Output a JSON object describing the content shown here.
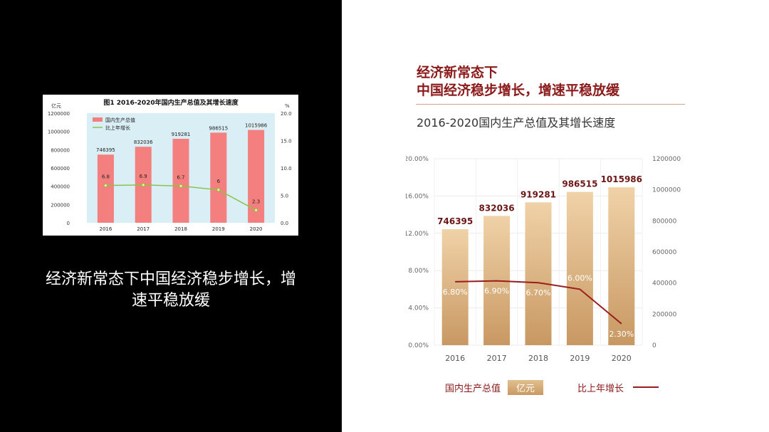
{
  "left_caption": "经济新常态下中国经济稳步增长，增速平稳放缓",
  "headline": {
    "line1": "经济新常态下",
    "line2": "中国经济稳步增长，增速平稳放缓"
  },
  "subtitle": "2016-2020国内生产总值及其增长速度",
  "legend": {
    "gdp": "国内生产总值",
    "unit": "亿元",
    "growth": "比上年增长"
  },
  "colors": {
    "bar_top": "#f0d2a8",
    "bar_bottom": "#c89862",
    "line": "#9a1c1c",
    "label_dark": "#6b1515"
  },
  "original_chart": {
    "title": "图1   2016-2020年国内生产总值及其增长速度",
    "left_unit": "亿元",
    "right_unit": "%",
    "legend_gdp": "国内生产总值",
    "legend_growth": "比上年增长",
    "y_left_ticks": [
      "1200000",
      "1000000",
      "800000",
      "600000",
      "400000",
      "200000",
      "0"
    ],
    "y_right_ticks": [
      "20.0",
      "15.0",
      "10.0",
      "5.0",
      "0.0"
    ]
  },
  "chart_data": {
    "type": "bar",
    "categories": [
      "2016",
      "2017",
      "2018",
      "2019",
      "2020"
    ],
    "series": [
      {
        "name": "国内生产总值",
        "type": "bar",
        "values": [
          746395,
          832036,
          919281,
          986515,
          1015986
        ],
        "labels": [
          "746395",
          "832036",
          "919281",
          "986515",
          "1015986"
        ]
      },
      {
        "name": "比上年增长",
        "type": "line",
        "values": [
          6.8,
          6.9,
          6.7,
          6.0,
          2.3
        ],
        "labels": [
          "6.80%",
          "6.90%",
          "6.70%",
          "6.00%",
          "2.30%"
        ]
      }
    ],
    "y_left_ticks": [
      "20.00%",
      "16.00%",
      "12.00%",
      "8.00%",
      "4.00%",
      "0.00%"
    ],
    "y_right_ticks": [
      "1200000",
      "1000000",
      "800000",
      "600000",
      "400000",
      "200000",
      "0"
    ],
    "ylim_percent": [
      0,
      20
    ],
    "ylim_gdp": [
      0,
      1200000
    ],
    "grid": true,
    "legend_position": "bottom"
  }
}
